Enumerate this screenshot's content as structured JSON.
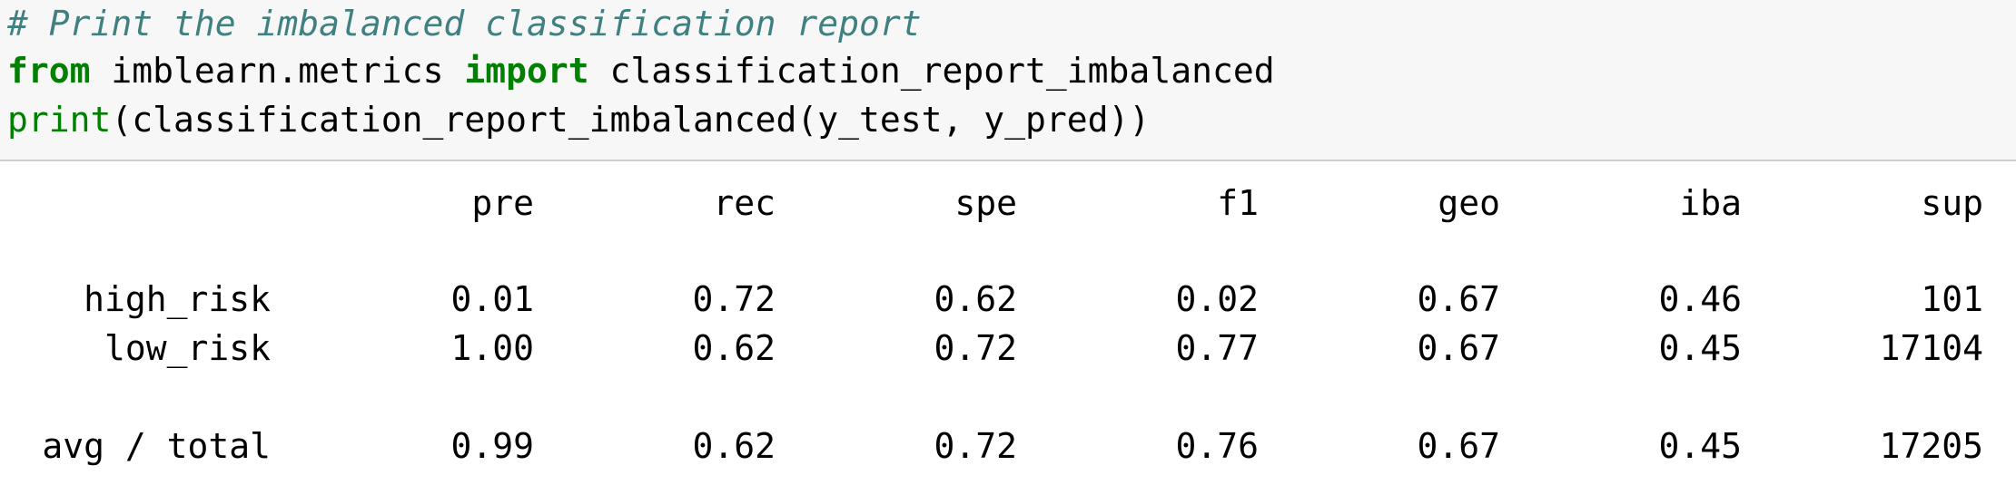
{
  "code": {
    "comment": "# Print the imbalanced classification report",
    "line2": {
      "kw_from": "from",
      "module": " imblearn.metrics ",
      "kw_import": "import",
      "name": " classification_report_imbalanced"
    },
    "line3": {
      "builtin": "print",
      "rest": "(classification_report_imbalanced(y_test, y_pred))"
    }
  },
  "report": {
    "headers": [
      "pre",
      "rec",
      "spe",
      "f1",
      "geo",
      "iba",
      "sup"
    ],
    "rows": [
      {
        "label": "high_risk",
        "values": [
          "0.01",
          "0.72",
          "0.62",
          "0.02",
          "0.67",
          "0.46",
          "101"
        ]
      },
      {
        "label": "low_risk",
        "values": [
          "1.00",
          "0.62",
          "0.72",
          "0.77",
          "0.67",
          "0.45",
          "17104"
        ]
      }
    ],
    "total": {
      "label": "avg / total",
      "values": [
        "0.99",
        "0.62",
        "0.72",
        "0.76",
        "0.67",
        "0.45",
        "17205"
      ]
    }
  }
}
